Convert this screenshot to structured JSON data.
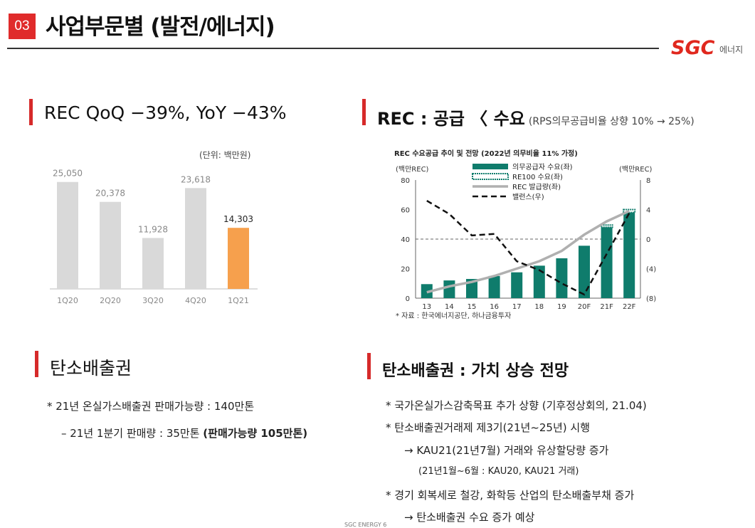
{
  "header": {
    "section_number": "03",
    "title": "사업부문별 (발전/에너지)",
    "logo_mark": "SGC",
    "logo_text": "에너지"
  },
  "rec_qoq": {
    "title": "REC QoQ −39%, YoY −43%"
  },
  "rec_supply": {
    "title_bold": "REC : 공급 〈 수요",
    "title_sub": "(RPS의무공급비율 상향 10% → 25%)"
  },
  "carbon_left": {
    "title": "탄소배출권",
    "line1": "* 21년 온실가스배출권 판매가능량 : 140만톤",
    "line2": "– 21년 1분기 판매량 : 35만톤",
    "line2_bold": "(판매가능량 105만톤)"
  },
  "carbon_right": {
    "title": "탄소배출권 : 가치 상승 전망",
    "items": [
      "* 국가온실가스감축목표 추가 상향 (기후정상회의, 21.04)",
      "* 탄소배출권거래제 제3기(21년~25년) 시행",
      "→ KAU21(21년7월) 거래와 유상할당량 증가",
      "(21년1월~6월 : KAU20, KAU21 거래)",
      "* 경기 회복세로 철강, 화학등 산업의 탄소배출부채 증가",
      "→ 탄소배출권 수요 증가 예상"
    ]
  },
  "footer": {
    "text": "SGC ENERGY 6"
  },
  "colors": {
    "accent_red": "#d62a2a",
    "highlight_orange": "#f6a04d",
    "bar_gray": "#d9d9d9",
    "teal": "#0f7c6c"
  },
  "chart_data": [
    {
      "type": "bar",
      "title": "",
      "unit_note": "(단위: 백만원)",
      "categories": [
        "1Q20",
        "2Q20",
        "3Q20",
        "4Q20",
        "1Q21"
      ],
      "values": [
        25050,
        20378,
        11928,
        23618,
        14303
      ],
      "value_labels": [
        "25,050",
        "20,378",
        "11,928",
        "23,618",
        "14,303"
      ],
      "highlight_index": 4,
      "ylim": [
        0,
        30000
      ]
    },
    {
      "type": "bar",
      "title": "REC 수요공급 추이 및 전망 (2022년 의무비율 11% 가정)",
      "y_left_label": "(백만REC)",
      "y_right_label": "(백만REC)",
      "categories": [
        "13",
        "14",
        "15",
        "16",
        "17",
        "18",
        "19",
        "20F",
        "21F",
        "22F"
      ],
      "ylim": [
        0,
        80
      ],
      "y2lim": [
        -8,
        8
      ],
      "y_ticks": [
        "0",
        "20",
        "40",
        "60",
        "80"
      ],
      "y2_ticks": [
        "(8)",
        "(4)",
        "0",
        "4",
        "8"
      ],
      "legend_placement": "top-left",
      "series": [
        {
          "name": "의무공급자 수요(좌)",
          "kind": "bar",
          "axis": "left",
          "values": [
            9.5,
            12,
            13,
            15,
            17.5,
            22,
            27,
            35.5,
            48,
            58
          ]
        },
        {
          "name": "RE100 수요(좌)",
          "kind": "bar-cap",
          "axis": "left",
          "values": [
            0,
            0,
            0,
            0,
            0,
            0,
            0,
            0,
            1.5,
            2
          ]
        },
        {
          "name": "REC 발급량(좌)",
          "kind": "line",
          "axis": "left",
          "values": [
            4,
            8,
            11,
            15,
            20,
            25,
            32,
            43,
            52,
            59
          ]
        },
        {
          "name": "밸런스(우)",
          "kind": "dashed-line",
          "axis": "right",
          "values": [
            5.2,
            3.4,
            0.5,
            0.7,
            -3,
            -4.2,
            -6,
            -7.5,
            -2,
            3.5
          ]
        }
      ],
      "source": "* 자료 : 한국에너지공단, 하나금융투자"
    }
  ]
}
